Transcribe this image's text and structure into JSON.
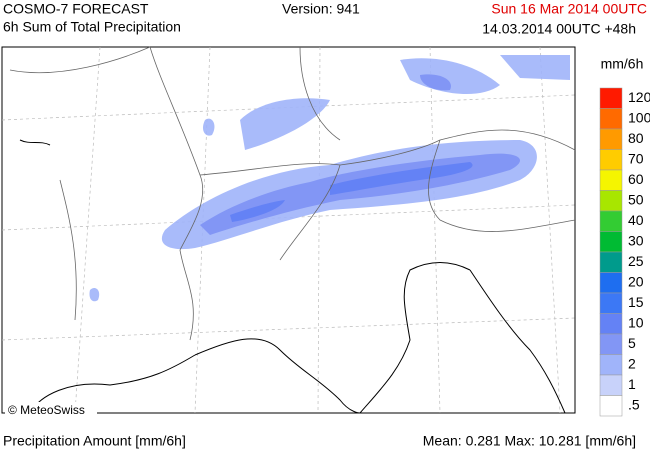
{
  "header": {
    "title": "COSMO-7 FORECAST",
    "subtitle": "6h Sum of Total Precipitation",
    "version": "Version: 941",
    "valid_time": "Sun 16 Mar 2014 00UTC",
    "run_time": "14.03.2014 00UTC +48h"
  },
  "legend": {
    "unit": "mm/6h",
    "items": [
      {
        "label": "120",
        "color": "#ff1a00"
      },
      {
        "label": "100",
        "color": "#ff6a00"
      },
      {
        "label": "80",
        "color": "#ff9a00"
      },
      {
        "label": "70",
        "color": "#ffcc00"
      },
      {
        "label": "60",
        "color": "#f5f500"
      },
      {
        "label": "50",
        "color": "#a8e600"
      },
      {
        "label": "40",
        "color": "#33cc33"
      },
      {
        "label": "30",
        "color": "#00bb33"
      },
      {
        "label": "25",
        "color": "#009b8c"
      },
      {
        "label": "20",
        "color": "#1e6ef0"
      },
      {
        "label": "15",
        "color": "#3c78f5"
      },
      {
        "label": "10",
        "color": "#6482f5"
      },
      {
        "label": "5",
        "color": "#8296f5"
      },
      {
        "label": "2",
        "color": "#a0b4fa"
      },
      {
        "label": "1",
        "color": "#c8d2fa"
      },
      {
        "label": ".5",
        "color": "#ffffff"
      }
    ]
  },
  "map": {
    "copyright": "© MeteoSwiss"
  },
  "footer": {
    "label": "Precipitation Amount [mm/6h]",
    "stats": "Mean:  0.281 Max:  10.281 [mm/6h]"
  }
}
